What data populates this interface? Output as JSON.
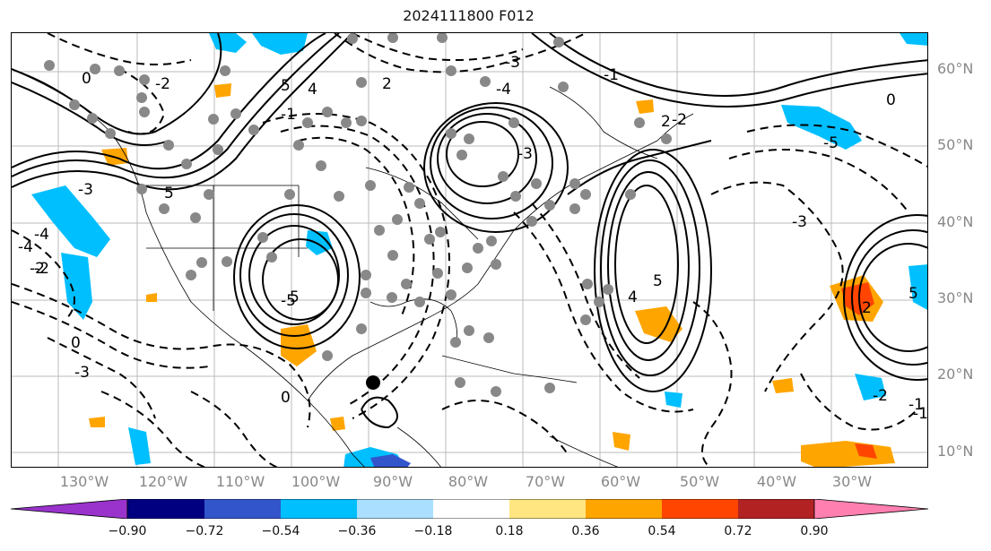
{
  "title": "2024111800 F012",
  "lat_labels": [
    "60°N",
    "50°N",
    "40°N",
    "30°N",
    "20°N",
    "10°N"
  ],
  "lon_labels": [
    "130°W",
    "120°W",
    "110°W",
    "100°W",
    "90°W",
    "80°W",
    "70°W",
    "60°W",
    "50°W",
    "40°W",
    "30°W"
  ],
  "contour_labels": [
    "-3",
    "-2",
    "-2",
    "-4",
    "5",
    "-1",
    "4",
    "5",
    "-5",
    "-2",
    "2",
    "-3",
    "-4",
    "0",
    "-5",
    "0",
    "2",
    "-3",
    "-3",
    "4",
    "5",
    "5",
    "-2",
    "-4",
    "0",
    "-2",
    "-3",
    "5",
    "2",
    "-1",
    "0",
    "-1",
    "-1"
  ],
  "colorbar": {
    "labels": [
      "−0.90",
      "−0.72",
      "−0.54",
      "−0.36",
      "−0.18",
      "0.18",
      "0.36",
      "0.54",
      "0.72",
      "0.90"
    ],
    "colors": [
      "#9933cc",
      "#000080",
      "#3355cc",
      "#00bfff",
      "#aadfff",
      "#ffffff",
      "#ffe680",
      "#ffa500",
      "#ff4500",
      "#b22222",
      "#ff80b0"
    ]
  },
  "filled_colors": {
    "cyan": "#00bfff",
    "blue": "#3355cc",
    "orange": "#ffa500",
    "red": "#ff4500"
  }
}
